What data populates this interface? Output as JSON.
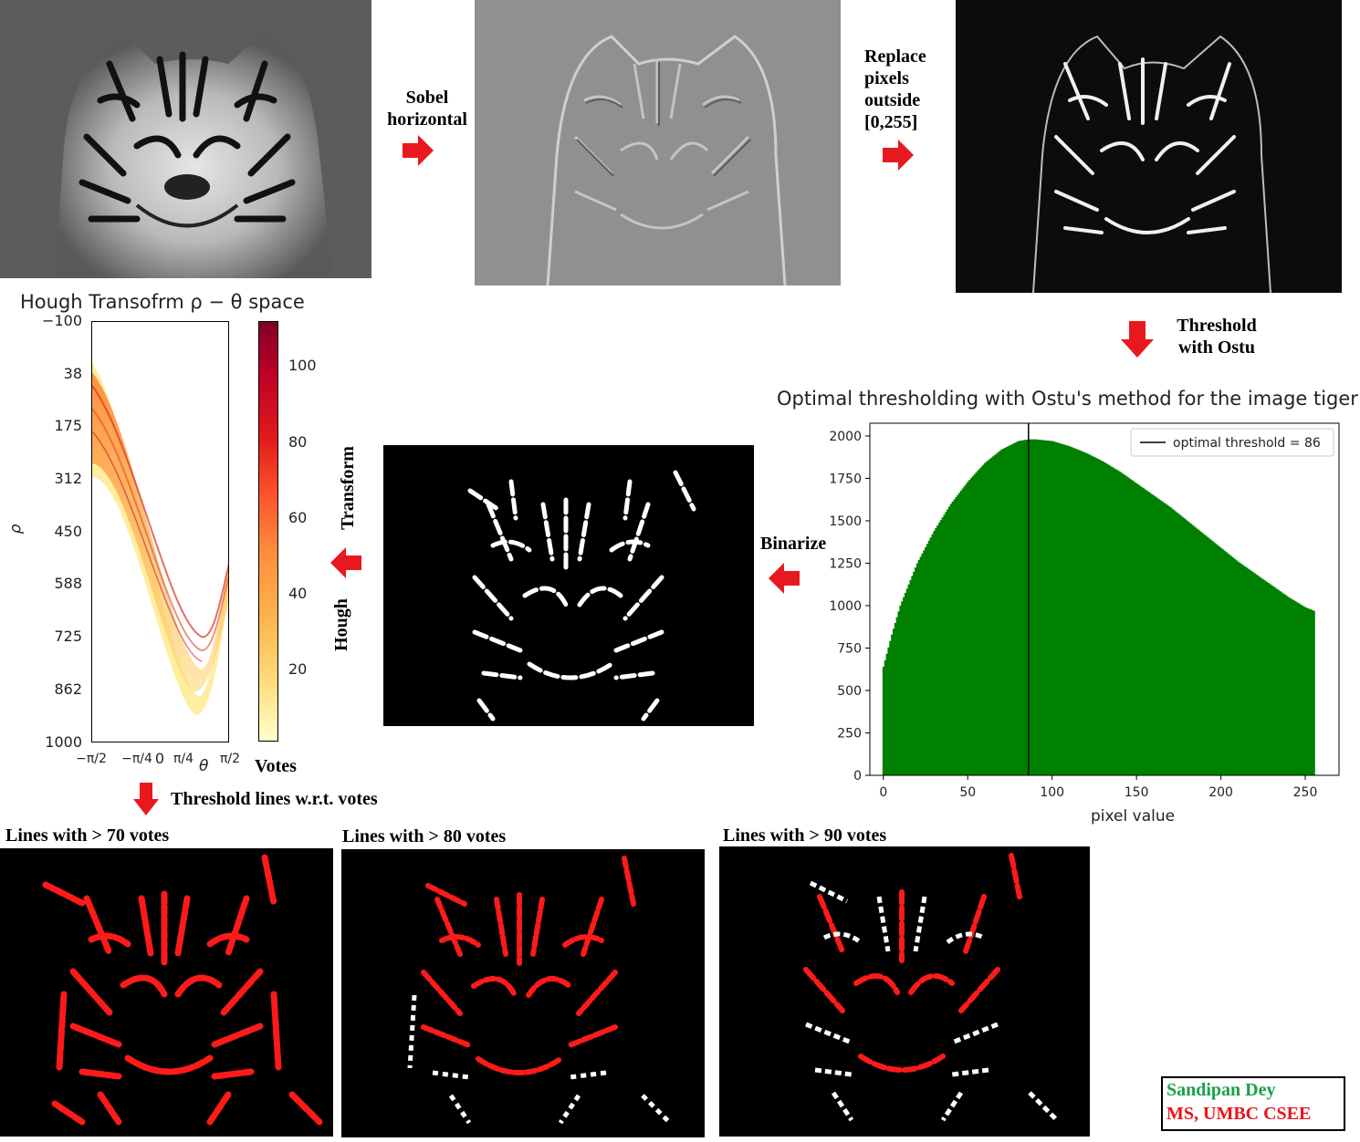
{
  "pipeline": {
    "step_sobel": "Sobel\nhorizontal",
    "step_replace": "Replace\npixels\noutside\n[0,255]",
    "step_threshold": "Threshold\nwith Ostu",
    "step_binarize": "Binarize",
    "step_hough_1": "Hough",
    "step_hough_2": "Transform",
    "step_threshold_lines": "Threshold lines w.r.t. votes"
  },
  "hough_plot": {
    "title": "Hough Transofrm ρ − θ space",
    "ylabel": "ρ",
    "xlabel": "θ",
    "y_ticks": [
      "−100",
      "38",
      "175",
      "312",
      "450",
      "588",
      "725",
      "862",
      "1000"
    ],
    "x_ticks": [
      "−π/2",
      "−π/4",
      "0",
      "π/4",
      "π/2"
    ],
    "colorbar_ticks": [
      "100",
      "80",
      "60",
      "40",
      "20"
    ],
    "colorbar_label": "Votes",
    "colormap": [
      "#ffffcc",
      "#fed976",
      "#fd8d3c",
      "#e31a1c",
      "#800026"
    ]
  },
  "otsu_plot": {
    "title": "Optimal thresholding with Ostu's method for the image tiger",
    "xlabel": "pixel value",
    "legend": "optimal threshold = 86",
    "bar_color": "#008000",
    "threshold_color": "#000000"
  },
  "chart_data": {
    "type": "bar",
    "title": "Optimal thresholding with Ostu's method for the image tiger",
    "xlabel": "pixel value",
    "ylabel": "",
    "xlim": [
      0,
      255
    ],
    "ylim": [
      0,
      2075
    ],
    "x_ticks": [
      0,
      50,
      100,
      150,
      200,
      250
    ],
    "y_ticks": [
      0,
      250,
      500,
      750,
      1000,
      1250,
      1500,
      1750,
      2000
    ],
    "x": [
      0,
      5,
      10,
      20,
      30,
      40,
      50,
      60,
      70,
      80,
      86,
      90,
      100,
      110,
      120,
      130,
      140,
      150,
      160,
      170,
      180,
      190,
      200,
      210,
      220,
      230,
      240,
      250,
      255
    ],
    "values": [
      640,
      830,
      1000,
      1250,
      1440,
      1600,
      1730,
      1840,
      1920,
      1970,
      1980,
      1980,
      1970,
      1940,
      1900,
      1850,
      1790,
      1720,
      1650,
      1580,
      1500,
      1420,
      1340,
      1260,
      1190,
      1120,
      1050,
      990,
      970
    ],
    "threshold": 86,
    "legend": "optimal threshold = 86",
    "grid": false
  },
  "results": {
    "lines_70": "Lines with > 70 votes",
    "lines_80": "Lines with > 80 votes",
    "lines_90": "Lines with > 90 votes"
  },
  "credit": {
    "name": "Sandipan Dey",
    "affiliation": "MS, UMBC CSEE",
    "name_color": "#1aa14a",
    "affiliation_color": "#e8141b"
  }
}
